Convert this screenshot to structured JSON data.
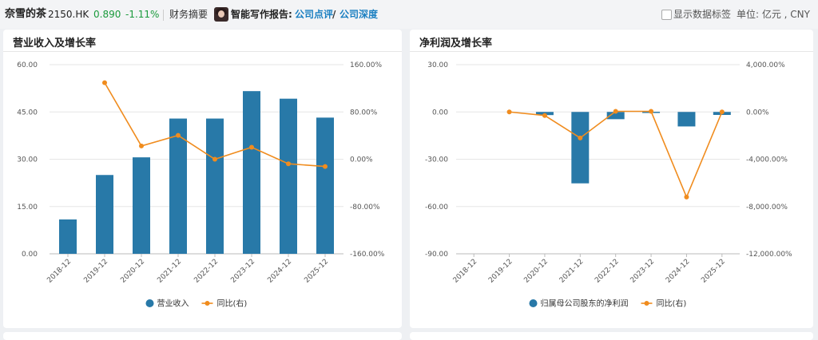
{
  "header": {
    "stock_name": "奈雪的茶",
    "stock_code": "2150.HK",
    "price": "0.890",
    "change": "-1.11%",
    "financial_summary": "财务摘要",
    "ai_report_label": "智能写作报告:",
    "link_review": "公司点评",
    "separator": "/",
    "link_depth": "公司深度",
    "show_labels": "显示数据标签",
    "unit": "单位: 亿元 , CNY"
  },
  "colors": {
    "bar": "#2879a8",
    "line": "#f08c1e",
    "positive": "#1a9a3c",
    "link": "#1a7fc1"
  },
  "chart_data": [
    {
      "type": "bar",
      "title": "营业收入及增长率",
      "categories": [
        "2018-12",
        "2019-12",
        "2020-12",
        "2021-12",
        "2022-12",
        "2023-12",
        "2024-12",
        "2025-12"
      ],
      "series": [
        {
          "name": "营业收入",
          "type": "bar",
          "axis": "left",
          "values": [
            10.9,
            25.0,
            30.6,
            42.9,
            42.9,
            51.6,
            49.2,
            43.2
          ]
        },
        {
          "name": "同比(右)",
          "type": "line",
          "axis": "right",
          "values": [
            null,
            129.5,
            22.4,
            40.3,
            0.0,
            20.3,
            -7.7,
            -12.3
          ]
        }
      ],
      "ylim_left": [
        0,
        60
      ],
      "ylim_right": [
        -160,
        160
      ],
      "yticks_left": [
        "60.00",
        "45.00",
        "30.00",
        "15.00",
        "0.00"
      ],
      "yticks_right": [
        "160.00%",
        "80.00%",
        "0.00%",
        "-80.00%",
        "-160.00%"
      ],
      "legend": [
        "营业收入",
        "同比(右)"
      ],
      "legend_position": "bottom",
      "grid": true
    },
    {
      "type": "bar",
      "title": "净利润及增长率",
      "categories": [
        "2018-12",
        "2019-12",
        "2020-12",
        "2021-12",
        "2022-12",
        "2023-12",
        "2024-12",
        "2025-12"
      ],
      "series": [
        {
          "name": "归属母公司股东的净利润",
          "type": "bar",
          "axis": "left",
          "values": [
            null,
            null,
            -2.0,
            -45.3,
            -4.6,
            0.1,
            -9.2,
            -1.9
          ]
        },
        {
          "name": "同比(右)",
          "type": "line",
          "axis": "right",
          "values": [
            null,
            0,
            -300,
            -2200,
            50,
            50,
            -7200,
            0
          ]
        }
      ],
      "ylim_left": [
        -90,
        30
      ],
      "ylim_right": [
        -12000,
        4000
      ],
      "yticks_left": [
        "30.00",
        "0.00",
        "-30.00",
        "-60.00",
        "-90.00"
      ],
      "yticks_right": [
        "4,000.00%",
        "0.00%",
        "-4,000.00%",
        "-8,000.00%",
        "-12,000.00%"
      ],
      "legend": [
        "归属母公司股东的净利润",
        "同比(右)"
      ],
      "legend_position": "bottom",
      "grid": true
    }
  ]
}
